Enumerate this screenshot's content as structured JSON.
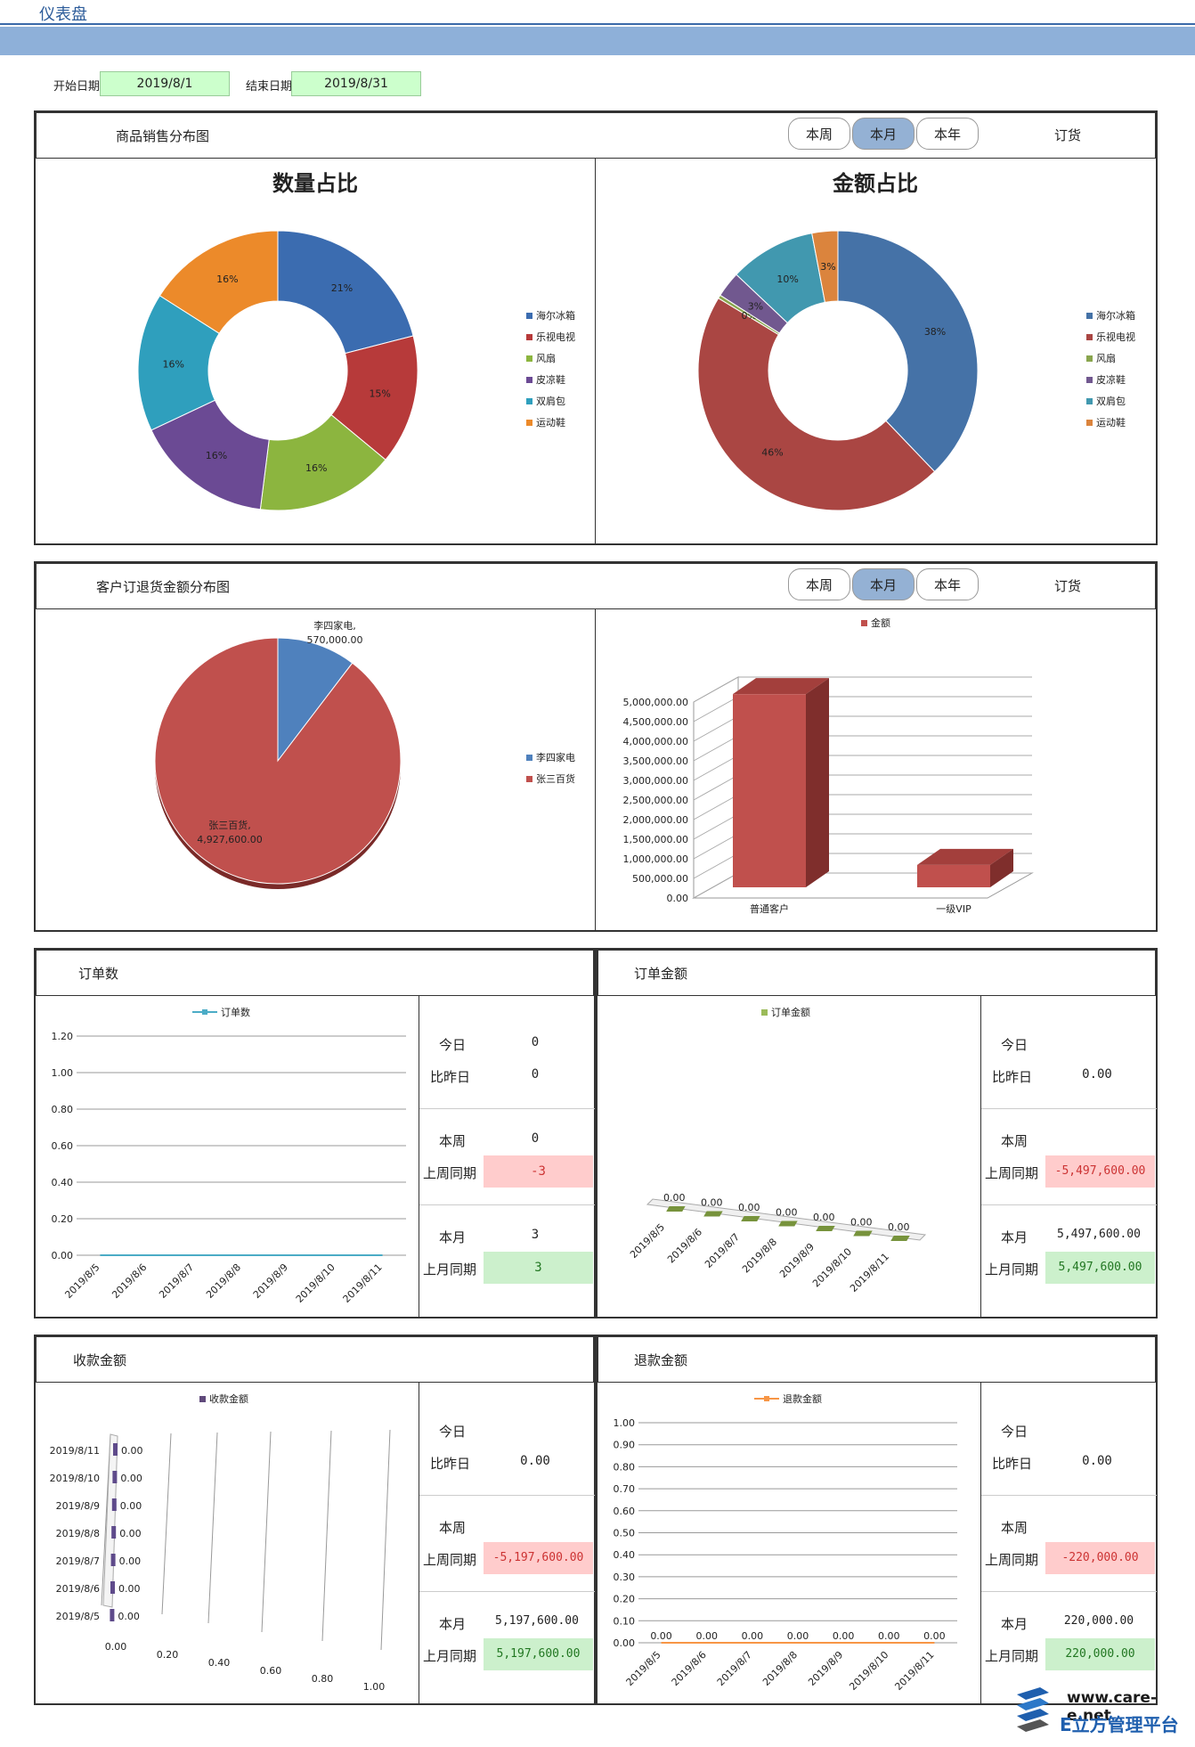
{
  "header": {
    "title": "仪表盘"
  },
  "filters": {
    "start_label": "开始日期",
    "start_value": "2019/8/1",
    "end_label": "结束日期",
    "end_value": "2019/8/31"
  },
  "period_tabs": [
    "本周",
    "本月",
    "本年"
  ],
  "order_label": "订货",
  "panels": {
    "sales": {
      "title": "商品销售分布图"
    },
    "customer": {
      "title": "客户订退货金额分布图"
    },
    "orders_count": {
      "title": "订单数"
    },
    "orders_amount": {
      "title": "订单金额"
    },
    "receipts": {
      "title": "收款金额"
    },
    "refunds": {
      "title": "退款金额"
    }
  },
  "stat_labels": {
    "today": "今日",
    "vs_yesterday": "比昨日",
    "this_week": "本周",
    "last_week": "上周同期",
    "this_month": "本月",
    "last_month": "上月同期"
  },
  "stats": {
    "orders_count": {
      "today": "0",
      "vs_yesterday": "0",
      "this_week": "0",
      "last_week": "-3",
      "this_month": "3",
      "last_month": "3"
    },
    "orders_amount": {
      "today": "",
      "vs_yesterday": "0.00",
      "this_week": "",
      "last_week": "-5,497,600.00",
      "this_month": "5,497,600.00",
      "last_month": "5,497,600.00"
    },
    "receipts": {
      "today": "",
      "vs_yesterday": "0.00",
      "this_week": "",
      "last_week": "-5,197,600.00",
      "this_month": "5,197,600.00",
      "last_month": "5,197,600.00"
    },
    "refunds": {
      "today": "",
      "vs_yesterday": "0.00",
      "this_week": "",
      "last_week": "-220,000.00",
      "this_month": "220,000.00",
      "last_month": "220,000.00"
    }
  },
  "colors": {
    "accent": "#8eb0d9",
    "green_box": "#ccffcc",
    "red_box": "#ffcccc"
  },
  "chart_data": [
    {
      "type": "pie",
      "title": "数量占比",
      "categories": [
        "海尔冰箱",
        "乐视电视",
        "风扇",
        "皮凉鞋",
        "双肩包",
        "运动鞋"
      ],
      "values": [
        21,
        15,
        16,
        16,
        16,
        16
      ],
      "labels": [
        "21%",
        "15%",
        "16%",
        "16%",
        "16%",
        "16%"
      ],
      "colors": [
        "#3b6cb0",
        "#b73a3a",
        "#8cb53f",
        "#6b4a94",
        "#2f9fbd",
        "#ec8a2a"
      ]
    },
    {
      "type": "pie",
      "title": "金额占比",
      "categories": [
        "海尔冰箱",
        "乐视电视",
        "风扇",
        "皮凉鞋",
        "双肩包",
        "运动鞋"
      ],
      "values": [
        38,
        46,
        0.4,
        3,
        10,
        3
      ],
      "labels": [
        "38%",
        "46%",
        "0%",
        "3%",
        "10%",
        "3%"
      ],
      "colors": [
        "#4572a7",
        "#aa4643",
        "#89a54e",
        "#71588f",
        "#4198af",
        "#db843d"
      ]
    },
    {
      "type": "pie",
      "categories": [
        "李四家电",
        "张三百货"
      ],
      "values": [
        570000,
        4927600
      ],
      "labels": [
        "李四家电,\n570,000.00",
        "张三百货,\n4,927,600.00"
      ],
      "colors": [
        "#4f81bd",
        "#c0504d"
      ]
    },
    {
      "type": "bar",
      "legend": [
        "金额"
      ],
      "categories": [
        "普通客户",
        "一级VIP"
      ],
      "values": [
        4927600,
        570000
      ],
      "ylim": [
        0,
        5000000
      ],
      "yticks": [
        "0.00",
        "500,000.00",
        "1,000,000.00",
        "1,500,000.00",
        "2,000,000.00",
        "2,500,000.00",
        "3,000,000.00",
        "3,500,000.00",
        "4,000,000.00",
        "4,500,000.00",
        "5,000,000.00"
      ]
    },
    {
      "type": "line",
      "legend": [
        "订单数"
      ],
      "categories": [
        "2019/8/5",
        "2019/8/6",
        "2019/8/7",
        "2019/8/8",
        "2019/8/9",
        "2019/8/10",
        "2019/8/11"
      ],
      "values": [
        0,
        0,
        0,
        0,
        0,
        0,
        0
      ],
      "yticks": [
        "0.00",
        "0.20",
        "0.40",
        "0.60",
        "0.80",
        "1.00",
        "1.20"
      ]
    },
    {
      "type": "bar",
      "legend": [
        "订单金额"
      ],
      "categories": [
        "2019/8/5",
        "2019/8/6",
        "2019/8/7",
        "2019/8/8",
        "2019/8/9",
        "2019/8/10",
        "2019/8/11"
      ],
      "values": [
        0,
        0,
        0,
        0,
        0,
        0,
        0
      ],
      "labels": [
        "0.00",
        "0.00",
        "0.00",
        "0.00",
        "0.00",
        "0.00",
        "0.00"
      ]
    },
    {
      "type": "bar",
      "legend": [
        "收款金额"
      ],
      "categories": [
        "2019/8/5",
        "2019/8/6",
        "2019/8/7",
        "2019/8/8",
        "2019/8/9",
        "2019/8/10",
        "2019/8/11"
      ],
      "values": [
        0,
        0,
        0,
        0,
        0,
        0,
        0
      ],
      "labels": [
        "0.00",
        "0.00",
        "0.00",
        "0.00",
        "0.00",
        "0.00",
        "0.00"
      ],
      "xticks": [
        "0.00",
        "0.20",
        "0.40",
        "0.60",
        "0.80",
        "1.00"
      ]
    },
    {
      "type": "line",
      "legend": [
        "退款金额"
      ],
      "categories": [
        "2019/8/5",
        "2019/8/6",
        "2019/8/7",
        "2019/8/8",
        "2019/8/9",
        "2019/8/10",
        "2019/8/11"
      ],
      "values": [
        0,
        0,
        0,
        0,
        0,
        0,
        0
      ],
      "labels": [
        "0.00",
        "0.00",
        "0.00",
        "0.00",
        "0.00",
        "0.00",
        "0.00"
      ],
      "yticks": [
        "0.00",
        "0.10",
        "0.20",
        "0.30",
        "0.40",
        "0.50",
        "0.60",
        "0.70",
        "0.80",
        "0.90",
        "1.00"
      ]
    }
  ],
  "logo": {
    "url_text": "www.care-e.net",
    "brand": "E立方管理平台"
  }
}
